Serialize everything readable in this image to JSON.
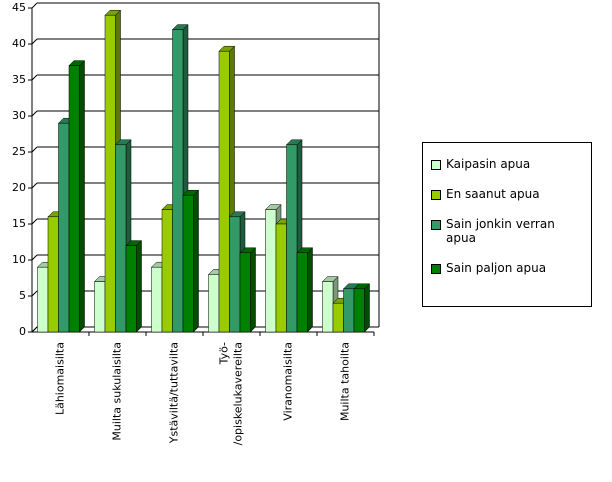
{
  "chart_data": {
    "type": "bar",
    "categories": [
      "Lähiomaisilta",
      "Muilta sukulaisilta",
      "Ystäviltä/tuttavilta",
      "Työ-/opiskelukavereilta",
      "Viranomaisilta",
      "Muilta tahoilta"
    ],
    "series": [
      {
        "name": "Kaipasin apua",
        "color": "#ccffcc",
        "values": [
          9,
          7,
          9,
          8,
          17,
          7
        ]
      },
      {
        "name": "En saanut apua",
        "color": "#99cc00",
        "values": [
          16,
          44,
          17,
          39,
          15,
          4
        ]
      },
      {
        "name": "Sain jonkin verran apua",
        "color": "#339966",
        "values": [
          29,
          26,
          42,
          16,
          26,
          6
        ]
      },
      {
        "name": "Sain paljon apua",
        "color": "#008000",
        "values": [
          37,
          12,
          19,
          11,
          11,
          6
        ]
      }
    ],
    "ylim": [
      0,
      45
    ],
    "yticks": [
      0,
      5,
      10,
      15,
      20,
      25,
      30,
      35,
      40,
      45
    ],
    "grid": true,
    "legend": "right"
  }
}
